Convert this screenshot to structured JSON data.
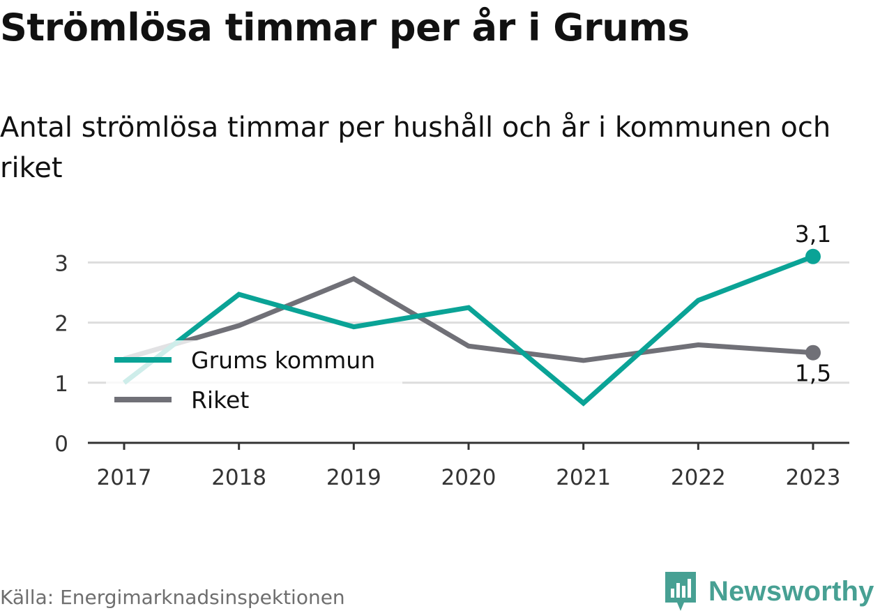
{
  "title": "Strömlösa timmar per år i Grums",
  "subtitle": "Antal strömlösa timmar per hushåll och år i kommunen och riket",
  "source": "Källa: Energimarknadsinspektionen",
  "brand": {
    "name": "Newsworthy",
    "icon": "newsworthy-logo-icon",
    "color": "#47a093"
  },
  "chart_data": {
    "type": "line",
    "x": [
      "2017",
      "2018",
      "2019",
      "2020",
      "2021",
      "2022",
      "2023"
    ],
    "ylim": [
      0,
      3.3
    ],
    "yticks": [
      "0",
      "1",
      "2",
      "3"
    ],
    "grid": true,
    "legend_position": "left-middle",
    "series": [
      {
        "name": "Grums kommun",
        "color": "#0aa396",
        "values": [
          1.0,
          2.47,
          1.93,
          2.25,
          0.66,
          2.37,
          3.1
        ],
        "end_label": "3,1"
      },
      {
        "name": "Riket",
        "color": "#707077",
        "values": [
          1.4,
          1.95,
          2.73,
          1.61,
          1.37,
          1.63,
          1.5
        ],
        "end_label": "1,5"
      }
    ]
  }
}
